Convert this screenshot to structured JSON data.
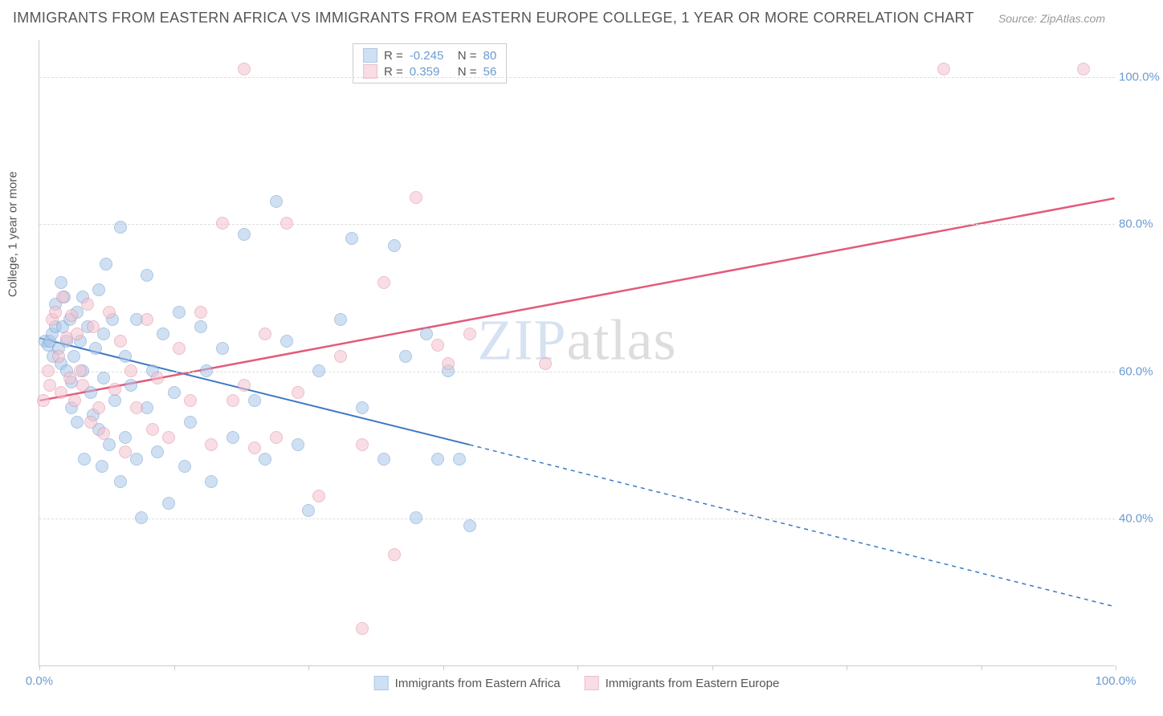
{
  "title": "IMMIGRANTS FROM EASTERN AFRICA VS IMMIGRANTS FROM EASTERN EUROPE COLLEGE, 1 YEAR OR MORE CORRELATION CHART",
  "source": "Source: ZipAtlas.com",
  "watermark_bold": "ZIP",
  "watermark_thin": "atlas",
  "ylabel": "College, 1 year or more",
  "chart": {
    "type": "scatter",
    "xlim": [
      0,
      100
    ],
    "ylim": [
      20,
      105
    ],
    "ytick_values": [
      40,
      60,
      80,
      100
    ],
    "ytick_labels": [
      "40.0%",
      "60.0%",
      "80.0%",
      "100.0%"
    ],
    "xtick_values": [
      0,
      12.5,
      25,
      37.5,
      50,
      62.5,
      75,
      87.5,
      100
    ],
    "xtick_labels_shown": {
      "0": "0.0%",
      "100": "100.0%"
    },
    "background_color": "#ffffff",
    "grid_color": "#dddddd",
    "axis_color": "#cccccc",
    "marker_radius": 8,
    "marker_stroke_width": 1.5,
    "series": [
      {
        "name": "Immigrants from Eastern Africa",
        "fill": "#a9c7e8",
        "stroke": "#6b9bd1",
        "fill_opacity": 0.55,
        "R": "-0.245",
        "N": "80",
        "regression": {
          "x1": 0,
          "y1": 64.5,
          "x2": 40,
          "y2": 50,
          "x2_dash": 100,
          "y2_dash": 28,
          "color": "#3b78c4",
          "width": 2
        },
        "points": [
          [
            0.5,
            64
          ],
          [
            0.8,
            63.5
          ],
          [
            1,
            64
          ],
          [
            1.2,
            65
          ],
          [
            1.3,
            62
          ],
          [
            1.5,
            66
          ],
          [
            1.5,
            69
          ],
          [
            1.8,
            63
          ],
          [
            2,
            61
          ],
          [
            2,
            72
          ],
          [
            2.2,
            66
          ],
          [
            2.3,
            70
          ],
          [
            2.5,
            60
          ],
          [
            2.5,
            64
          ],
          [
            2.8,
            67
          ],
          [
            3,
            55
          ],
          [
            3,
            58.5
          ],
          [
            3.2,
            62
          ],
          [
            3.5,
            68
          ],
          [
            3.5,
            53
          ],
          [
            3.8,
            64
          ],
          [
            4,
            70
          ],
          [
            4,
            60
          ],
          [
            4.2,
            48
          ],
          [
            4.5,
            66
          ],
          [
            4.8,
            57
          ],
          [
            5,
            54
          ],
          [
            5.2,
            63
          ],
          [
            5.5,
            52
          ],
          [
            5.5,
            71
          ],
          [
            5.8,
            47
          ],
          [
            6,
            65
          ],
          [
            6,
            59
          ],
          [
            6.2,
            74.5
          ],
          [
            6.5,
            50
          ],
          [
            6.8,
            67
          ],
          [
            7,
            56
          ],
          [
            7.5,
            45
          ],
          [
            7.5,
            79.5
          ],
          [
            8,
            62
          ],
          [
            8,
            51
          ],
          [
            8.5,
            58
          ],
          [
            9,
            48
          ],
          [
            9,
            67
          ],
          [
            9.5,
            40
          ],
          [
            10,
            73
          ],
          [
            10,
            55
          ],
          [
            10.5,
            60
          ],
          [
            11,
            49
          ],
          [
            11.5,
            65
          ],
          [
            12,
            42
          ],
          [
            12.5,
            57
          ],
          [
            13,
            68
          ],
          [
            13.5,
            47
          ],
          [
            14,
            53
          ],
          [
            15,
            66
          ],
          [
            15.5,
            60
          ],
          [
            16,
            45
          ],
          [
            17,
            63
          ],
          [
            18,
            51
          ],
          [
            19,
            78.5
          ],
          [
            20,
            56
          ],
          [
            21,
            48
          ],
          [
            22,
            83
          ],
          [
            23,
            64
          ],
          [
            24,
            50
          ],
          [
            25,
            41
          ],
          [
            26,
            60
          ],
          [
            28,
            67
          ],
          [
            29,
            78
          ],
          [
            30,
            55
          ],
          [
            32,
            48
          ],
          [
            33,
            77
          ],
          [
            34,
            62
          ],
          [
            35,
            40
          ],
          [
            36,
            65
          ],
          [
            37,
            48
          ],
          [
            38,
            60
          ],
          [
            39,
            48
          ],
          [
            40,
            39
          ]
        ]
      },
      {
        "name": "Immigrants from Eastern Europe",
        "fill": "#f4c2ce",
        "stroke": "#e08ba0",
        "fill_opacity": 0.55,
        "R": "0.359",
        "N": "56",
        "regression": {
          "x1": 0,
          "y1": 56,
          "x2": 100,
          "y2": 83.5,
          "color": "#e35a7a",
          "width": 2.5
        },
        "points": [
          [
            0.4,
            56
          ],
          [
            0.8,
            60
          ],
          [
            1,
            58
          ],
          [
            1.2,
            67
          ],
          [
            1.5,
            68
          ],
          [
            1.8,
            62
          ],
          [
            2,
            57
          ],
          [
            2.2,
            70
          ],
          [
            2.5,
            64.5
          ],
          [
            2.8,
            59
          ],
          [
            3,
            67.5
          ],
          [
            3.3,
            56
          ],
          [
            3.5,
            65
          ],
          [
            3.8,
            60
          ],
          [
            4,
            58
          ],
          [
            4.5,
            69
          ],
          [
            4.8,
            53
          ],
          [
            5,
            66
          ],
          [
            5.5,
            55
          ],
          [
            6,
            51.5
          ],
          [
            6.5,
            68
          ],
          [
            7,
            57.5
          ],
          [
            7.5,
            64
          ],
          [
            8,
            49
          ],
          [
            8.5,
            60
          ],
          [
            9,
            55
          ],
          [
            10,
            67
          ],
          [
            10.5,
            52
          ],
          [
            11,
            59
          ],
          [
            12,
            51
          ],
          [
            13,
            63
          ],
          [
            14,
            56
          ],
          [
            15,
            68
          ],
          [
            16,
            50
          ],
          [
            17,
            80
          ],
          [
            18,
            56
          ],
          [
            19,
            58
          ],
          [
            20,
            49.5
          ],
          [
            21,
            65
          ],
          [
            22,
            51
          ],
          [
            23,
            80
          ],
          [
            24,
            57
          ],
          [
            26,
            43
          ],
          [
            28,
            62
          ],
          [
            30,
            50
          ],
          [
            32,
            72
          ],
          [
            33,
            35
          ],
          [
            35,
            83.5
          ],
          [
            37,
            63.5
          ],
          [
            38,
            61
          ],
          [
            40,
            65
          ],
          [
            47,
            61
          ],
          [
            19,
            101
          ],
          [
            84,
            101
          ],
          [
            97,
            101
          ],
          [
            30,
            25
          ]
        ]
      }
    ]
  },
  "legend": {
    "r_label": "R =",
    "n_label": "N ="
  }
}
